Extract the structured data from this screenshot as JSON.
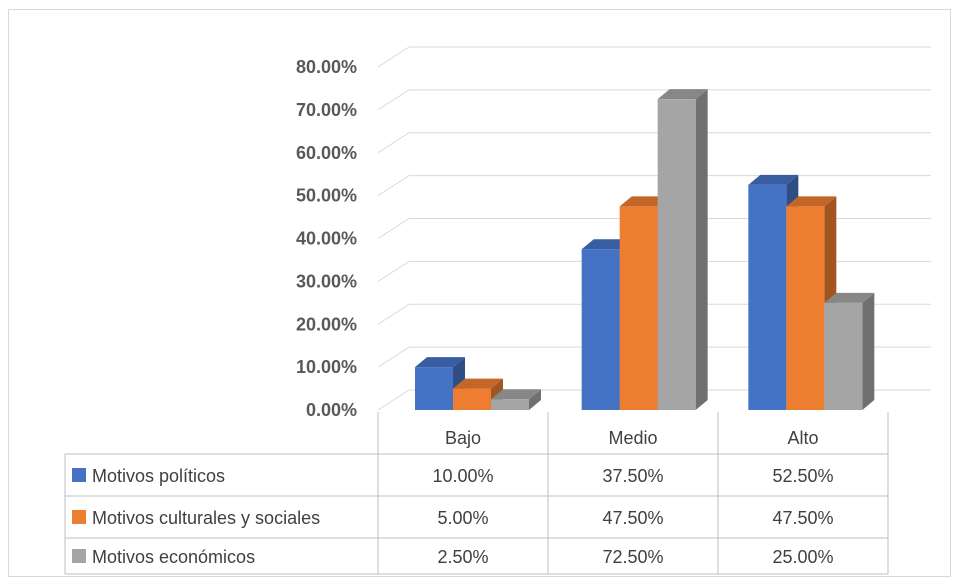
{
  "chart_data": {
    "type": "bar",
    "title": "",
    "categories": [
      "Bajo",
      "Medio",
      "Alto"
    ],
    "series": [
      {
        "name": "Motivos políticos",
        "values": [
          0.1,
          0.375,
          0.525
        ],
        "labels": [
          "10.00%",
          "37.50%",
          "52.50%"
        ],
        "color": "#4472c4"
      },
      {
        "name": "Motivos culturales y sociales",
        "values": [
          0.05,
          0.475,
          0.475
        ],
        "labels": [
          "5.00%",
          "47.50%",
          "47.50%"
        ],
        "color": "#ed7d31"
      },
      {
        "name": "Motivos económicos",
        "values": [
          0.025,
          0.725,
          0.25
        ],
        "labels": [
          "2.50%",
          "72.50%",
          "25.00%"
        ],
        "color": "#a5a5a5"
      }
    ],
    "y_ticks": [
      "0.00%",
      "10.00%",
      "20.00%",
      "30.00%",
      "40.00%",
      "50.00%",
      "60.00%",
      "70.00%",
      "80.00%"
    ],
    "ylim": [
      0,
      0.8
    ],
    "grid": true,
    "style": "3d-clustered-column",
    "legend": "data-table"
  }
}
